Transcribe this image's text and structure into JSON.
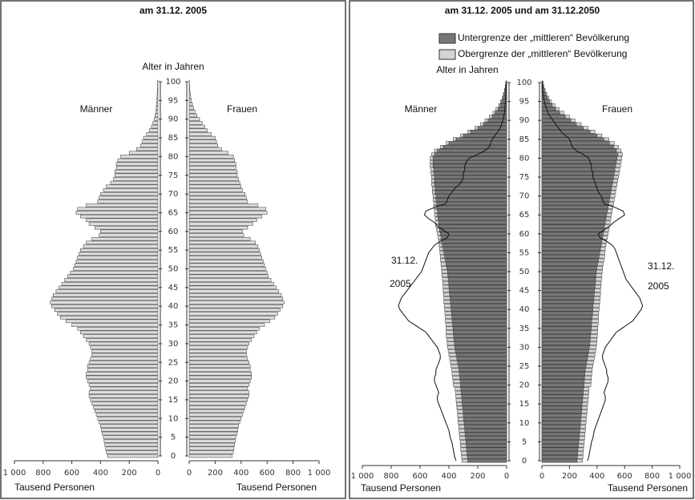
{
  "chart_data": [
    {
      "type": "pyramid",
      "title": "am 31.12. 2005",
      "age_label": "Alter in Jahren",
      "side_labels": [
        "Männer",
        "Frauen"
      ],
      "x_label_left": "Tausend Personen",
      "x_label_right": "Tausend Personen",
      "color": "#dcdcdc",
      "ages": [
        0,
        1,
        2,
        3,
        4,
        5,
        6,
        7,
        8,
        9,
        10,
        11,
        12,
        13,
        14,
        15,
        16,
        17,
        18,
        19,
        20,
        21,
        22,
        23,
        24,
        25,
        26,
        27,
        28,
        29,
        30,
        31,
        32,
        33,
        34,
        35,
        36,
        37,
        38,
        39,
        40,
        41,
        42,
        43,
        44,
        45,
        46,
        47,
        48,
        49,
        50,
        51,
        52,
        53,
        54,
        55,
        56,
        57,
        58,
        59,
        60,
        61,
        62,
        63,
        64,
        65,
        66,
        67,
        68,
        69,
        70,
        71,
        72,
        73,
        74,
        75,
        76,
        77,
        78,
        79,
        80,
        81,
        82,
        83,
        84,
        85,
        86,
        87,
        88,
        89,
        90,
        91,
        92,
        93,
        94,
        95,
        96,
        97,
        98,
        99,
        100
      ],
      "men": [
        350,
        360,
        365,
        370,
        375,
        380,
        390,
        395,
        400,
        410,
        420,
        430,
        440,
        450,
        460,
        470,
        480,
        480,
        470,
        480,
        490,
        500,
        500,
        490,
        490,
        480,
        470,
        460,
        460,
        470,
        480,
        500,
        520,
        540,
        560,
        600,
        640,
        680,
        700,
        720,
        740,
        750,
        740,
        730,
        710,
        690,
        670,
        650,
        630,
        610,
        590,
        580,
        570,
        560,
        550,
        540,
        520,
        500,
        460,
        410,
        400,
        440,
        480,
        500,
        540,
        570,
        560,
        500,
        420,
        410,
        400,
        380,
        360,
        330,
        310,
        300,
        300,
        290,
        290,
        280,
        260,
        200,
        150,
        120,
        110,
        100,
        80,
        60,
        45,
        35,
        25,
        20,
        15,
        12,
        10,
        8,
        6,
        5,
        4,
        3,
        2
      ],
      "women": [
        330,
        340,
        345,
        350,
        355,
        360,
        370,
        375,
        380,
        390,
        400,
        410,
        420,
        430,
        440,
        450,
        460,
        460,
        450,
        460,
        470,
        480,
        480,
        470,
        470,
        460,
        450,
        440,
        440,
        450,
        460,
        480,
        500,
        520,
        540,
        580,
        620,
        660,
        680,
        700,
        720,
        730,
        720,
        710,
        690,
        670,
        650,
        630,
        610,
        600,
        590,
        580,
        570,
        560,
        550,
        540,
        530,
        510,
        470,
        420,
        410,
        450,
        490,
        520,
        560,
        600,
        590,
        530,
        450,
        440,
        430,
        410,
        400,
        390,
        380,
        370,
        370,
        360,
        360,
        350,
        340,
        300,
        250,
        220,
        210,
        200,
        170,
        140,
        120,
        100,
        80,
        60,
        45,
        35,
        25,
        18,
        12,
        8,
        5,
        3,
        2
      ],
      "xlim": [
        0,
        1000
      ],
      "xticks": [
        {
          "value": 1000,
          "label": "1 000"
        },
        800,
        600,
        400,
        200,
        0
      ],
      "ylim": [
        0,
        100
      ],
      "yticks": [
        0,
        5,
        10,
        15,
        20,
        25,
        30,
        35,
        40,
        45,
        50,
        55,
        60,
        65,
        70,
        75,
        80,
        85,
        90,
        95,
        100
      ]
    },
    {
      "type": "pyramid",
      "title": "am 31.12. 2005 und am 31.12.2050",
      "age_label": "Alter in Jahren",
      "side_labels": [
        "Männer",
        "Frauen"
      ],
      "x_label_left": "Tausend Personen",
      "x_label_right": "Tausend Personen",
      "annotations": [
        "31.12.",
        "2005",
        "31.12.",
        "2005"
      ],
      "ages": [
        0,
        1,
        2,
        3,
        4,
        5,
        6,
        7,
        8,
        9,
        10,
        11,
        12,
        13,
        14,
        15,
        16,
        17,
        18,
        19,
        20,
        21,
        22,
        23,
        24,
        25,
        26,
        27,
        28,
        29,
        30,
        31,
        32,
        33,
        34,
        35,
        36,
        37,
        38,
        39,
        40,
        41,
        42,
        43,
        44,
        45,
        46,
        47,
        48,
        49,
        50,
        51,
        52,
        53,
        54,
        55,
        56,
        57,
        58,
        59,
        60,
        61,
        62,
        63,
        64,
        65,
        66,
        67,
        68,
        69,
        70,
        71,
        72,
        73,
        74,
        75,
        76,
        77,
        78,
        79,
        80,
        81,
        82,
        83,
        84,
        85,
        86,
        87,
        88,
        89,
        90,
        91,
        92,
        93,
        94,
        95,
        96,
        97,
        98,
        99,
        100
      ],
      "series": [
        {
          "name": "Untergrenze der „mittleren“ Bevölkerung",
          "color": "#777777",
          "men": [
            270,
            272,
            275,
            278,
            280,
            282,
            285,
            288,
            290,
            292,
            295,
            298,
            300,
            302,
            305,
            308,
            310,
            312,
            315,
            318,
            320,
            322,
            325,
            328,
            330,
            335,
            340,
            345,
            350,
            355,
            360,
            362,
            365,
            368,
            370,
            372,
            375,
            378,
            380,
            382,
            385,
            388,
            390,
            392,
            395,
            398,
            400,
            402,
            405,
            408,
            410,
            415,
            420,
            425,
            430,
            435,
            440,
            445,
            450,
            455,
            460,
            465,
            470,
            470,
            475,
            480,
            480,
            485,
            485,
            490,
            490,
            495,
            495,
            500,
            500,
            500,
            505,
            505,
            510,
            510,
            510,
            500,
            480,
            440,
            400,
            350,
            300,
            250,
            200,
            160,
            130,
            100,
            80,
            60,
            45,
            35,
            25,
            18,
            12,
            8,
            5
          ],
          "women": [
            255,
            258,
            260,
            262,
            265,
            268,
            270,
            272,
            275,
            278,
            280,
            282,
            285,
            288,
            290,
            292,
            295,
            298,
            300,
            302,
            305,
            308,
            310,
            312,
            315,
            320,
            325,
            330,
            335,
            340,
            345,
            348,
            350,
            352,
            355,
            358,
            360,
            362,
            365,
            368,
            370,
            372,
            375,
            378,
            380,
            382,
            385,
            388,
            390,
            392,
            395,
            400,
            405,
            410,
            415,
            420,
            425,
            430,
            435,
            440,
            445,
            450,
            455,
            460,
            465,
            470,
            475,
            480,
            485,
            490,
            495,
            500,
            505,
            510,
            515,
            520,
            525,
            530,
            535,
            540,
            545,
            550,
            540,
            520,
            490,
            450,
            400,
            350,
            300,
            250,
            210,
            170,
            130,
            100,
            75,
            55,
            40,
            28,
            18,
            12,
            7
          ]
        },
        {
          "name": "Obergrenze der „mittleren“ Bevölkerung",
          "color": "#d4d4d4",
          "men": [
            310,
            312,
            315,
            318,
            320,
            322,
            325,
            328,
            330,
            332,
            335,
            338,
            340,
            342,
            345,
            348,
            350,
            352,
            355,
            358,
            370,
            372,
            375,
            378,
            380,
            385,
            390,
            395,
            400,
            405,
            410,
            412,
            415,
            418,
            420,
            420,
            422,
            425,
            425,
            428,
            430,
            432,
            435,
            435,
            438,
            440,
            440,
            442,
            445,
            448,
            450,
            452,
            455,
            458,
            460,
            462,
            465,
            468,
            470,
            475,
            480,
            485,
            490,
            490,
            495,
            500,
            500,
            505,
            505,
            510,
            510,
            515,
            515,
            520,
            520,
            520,
            525,
            525,
            530,
            530,
            530,
            520,
            500,
            460,
            420,
            370,
            320,
            270,
            220,
            180,
            150,
            120,
            95,
            75,
            55,
            42,
            30,
            22,
            15,
            10,
            6
          ],
          "women": [
            295,
            298,
            300,
            302,
            305,
            308,
            310,
            312,
            315,
            318,
            320,
            322,
            325,
            328,
            330,
            332,
            335,
            338,
            340,
            342,
            355,
            358,
            360,
            362,
            365,
            370,
            375,
            380,
            385,
            390,
            395,
            398,
            400,
            402,
            405,
            405,
            408,
            410,
            410,
            412,
            415,
            418,
            420,
            422,
            425,
            425,
            428,
            430,
            432,
            435,
            438,
            440,
            445,
            450,
            455,
            458,
            460,
            465,
            470,
            475,
            480,
            485,
            490,
            495,
            500,
            505,
            510,
            515,
            520,
            525,
            530,
            535,
            540,
            545,
            550,
            555,
            560,
            565,
            570,
            575,
            580,
            585,
            575,
            555,
            525,
            485,
            435,
            385,
            335,
            285,
            240,
            200,
            160,
            125,
            95,
            70,
            50,
            35,
            24,
            15,
            9
          ]
        }
      ],
      "outline": {
        "men": [
          350,
          360,
          365,
          370,
          375,
          380,
          390,
          395,
          400,
          410,
          420,
          430,
          440,
          450,
          460,
          470,
          480,
          480,
          470,
          480,
          490,
          500,
          500,
          490,
          490,
          480,
          470,
          460,
          460,
          470,
          480,
          500,
          520,
          540,
          560,
          600,
          640,
          680,
          700,
          720,
          740,
          750,
          740,
          730,
          710,
          690,
          670,
          650,
          630,
          610,
          590,
          580,
          570,
          560,
          550,
          540,
          520,
          500,
          460,
          410,
          400,
          440,
          480,
          500,
          540,
          570,
          560,
          500,
          420,
          410,
          400,
          380,
          360,
          330,
          310,
          300,
          300,
          290,
          290,
          280,
          260,
          200,
          150,
          120,
          110,
          100,
          80,
          60,
          45,
          35,
          25,
          20,
          15,
          12,
          10,
          8,
          6,
          5,
          4,
          3,
          2
        ],
        "women": [
          330,
          340,
          345,
          350,
          355,
          360,
          370,
          375,
          380,
          390,
          400,
          410,
          420,
          430,
          440,
          450,
          460,
          460,
          450,
          460,
          470,
          480,
          480,
          470,
          470,
          460,
          450,
          440,
          440,
          450,
          460,
          480,
          500,
          520,
          540,
          580,
          620,
          660,
          680,
          700,
          720,
          730,
          720,
          710,
          690,
          670,
          650,
          630,
          610,
          600,
          590,
          580,
          570,
          560,
          550,
          540,
          530,
          510,
          470,
          420,
          410,
          450,
          490,
          520,
          560,
          600,
          590,
          530,
          450,
          440,
          430,
          410,
          400,
          390,
          380,
          370,
          370,
          360,
          360,
          350,
          340,
          300,
          250,
          220,
          210,
          200,
          170,
          140,
          120,
          100,
          80,
          60,
          45,
          35,
          25,
          18,
          12,
          8,
          5,
          3,
          2
        ]
      },
      "xlim": [
        0,
        1000
      ],
      "xticks": [
        {
          "value": 1000,
          "label": "1 000"
        },
        800,
        600,
        400,
        200,
        0
      ],
      "ylim": [
        0,
        100
      ],
      "yticks": [
        0,
        5,
        10,
        15,
        20,
        25,
        30,
        35,
        40,
        45,
        50,
        55,
        60,
        65,
        70,
        75,
        80,
        85,
        90,
        95,
        100
      ]
    }
  ]
}
